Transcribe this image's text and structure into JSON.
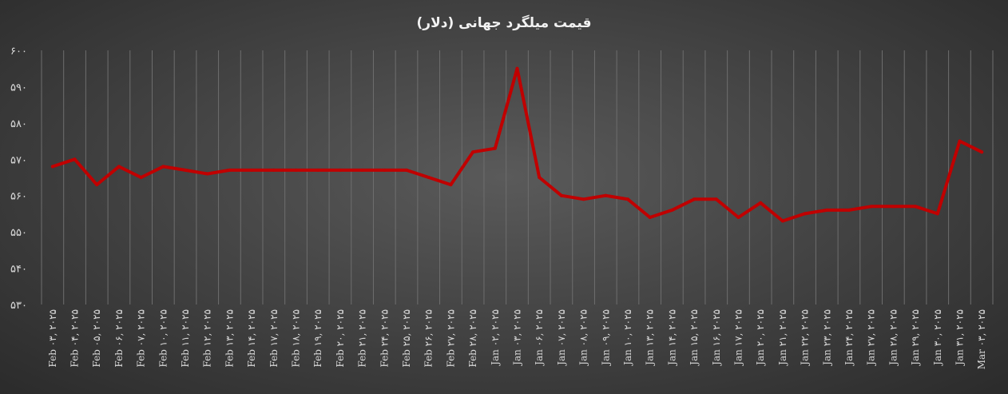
{
  "chart_data": {
    "type": "line",
    "title": "قیمت میلگرد جهانی (دلار)",
    "xlabel": "",
    "ylabel": "",
    "ylim": [
      530,
      600
    ],
    "yticks": [
      "۵۳۰",
      "۵۴۰",
      "۵۵۰",
      "۵۶۰",
      "۵۷۰",
      "۵۸۰",
      "۵۹۰",
      "۶۰۰"
    ],
    "grid": "vertical",
    "line_color": "#c00000",
    "categories": [
      "Feb ۰۳, ۲۰۲۵",
      "Feb ۰۴, ۲۰۲۵",
      "Feb ۰۵, ۲۰۲۵",
      "Feb ۰۶, ۲۰۲۵",
      "Feb ۰۷, ۲۰۲۵",
      "Feb ۱۰, ۲۰۲۵",
      "Feb ۱۱, ۲۰۲۵",
      "Feb ۱۲, ۲۰۲۵",
      "Feb ۱۳, ۲۰۲۵",
      "Feb ۱۴, ۲۰۲۵",
      "Feb ۱۷, ۲۰۲۵",
      "Feb ۱۸, ۲۰۲۵",
      "Feb ۱۹, ۲۰۲۵",
      "Feb ۲۰, ۲۰۲۵",
      "Feb ۲۱, ۲۰۲۵",
      "Feb ۲۴, ۲۰۲۵",
      "Feb ۲۵, ۲۰۲۵",
      "Feb ۲۶, ۲۰۲۵",
      "Feb ۲۷, ۲۰۲۵",
      "Feb ۲۸, ۲۰۲۵",
      "Jan ۰۲, ۲۰۲۵",
      "Jan ۰۳, ۲۰۲۵",
      "Jan ۰۶, ۲۰۲۵",
      "Jan ۰۷, ۲۰۲۵",
      "Jan ۰۸, ۲۰۲۵",
      "Jan ۰۹, ۲۰۲۵",
      "Jan ۱۰, ۲۰۲۵",
      "Jan ۱۳, ۲۰۲۵",
      "Jan ۱۴, ۲۰۲۵",
      "Jan ۱۵, ۲۰۲۵",
      "Jan ۱۶, ۲۰۲۵",
      "Jan ۱۷, ۲۰۲۵",
      "Jan ۲۰, ۲۰۲۵",
      "Jan ۲۱, ۲۰۲۵",
      "Jan ۲۲, ۲۰۲۵",
      "Jan ۲۳, ۲۰۲۵",
      "Jan ۲۴, ۲۰۲۵",
      "Jan ۲۷, ۲۰۲۵",
      "Jan ۲۸, ۲۰۲۵",
      "Jan ۲۹, ۲۰۲۵",
      "Jan ۳۰, ۲۰۲۵",
      "Jan ۳۱, ۲۰۲۵",
      "Mar ۰۳, ۲۰۲۵"
    ],
    "series": [
      {
        "values": [
          568,
          570,
          563,
          568,
          565,
          568,
          567,
          566,
          567,
          567,
          567,
          567,
          567,
          567,
          567,
          567,
          567,
          565,
          563,
          572,
          573,
          595,
          565,
          560,
          559,
          560,
          559,
          554,
          556,
          559,
          559,
          554,
          558,
          553,
          555,
          556,
          556,
          557,
          557,
          557,
          555,
          575,
          572
        ]
      }
    ]
  }
}
